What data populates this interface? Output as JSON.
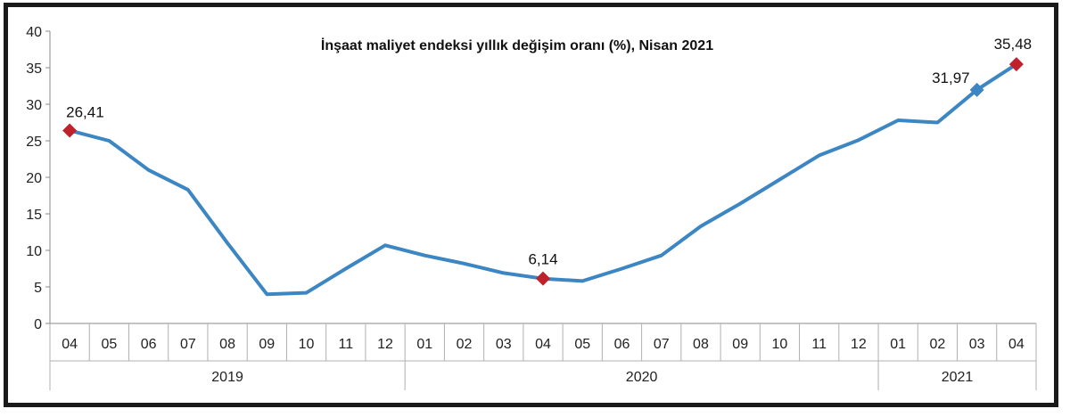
{
  "chart_data": {
    "type": "line",
    "title": "İnşaat maliyet endeksi yıllık değişim oranı (%), Nisan 2021",
    "xlabel": "",
    "ylabel": "",
    "ylim": [
      0,
      40
    ],
    "yticks": [
      "0",
      "5",
      "10",
      "15",
      "20",
      "25",
      "30",
      "35",
      "40"
    ],
    "categories": [
      "04",
      "05",
      "06",
      "07",
      "08",
      "09",
      "10",
      "11",
      "12",
      "01",
      "02",
      "03",
      "04",
      "05",
      "06",
      "07",
      "08",
      "09",
      "10",
      "11",
      "12",
      "01",
      "02",
      "03",
      "04"
    ],
    "year_groups": [
      {
        "label": "2019",
        "start": 0,
        "end": 8
      },
      {
        "label": "2020",
        "start": 9,
        "end": 20
      },
      {
        "label": "2021",
        "start": 21,
        "end": 24
      }
    ],
    "series": [
      {
        "values": [
          26.41,
          25.0,
          21.0,
          18.3,
          11.0,
          4.0,
          4.2,
          7.5,
          10.7,
          9.3,
          8.2,
          6.9,
          6.14,
          5.8,
          7.5,
          9.3,
          13.3,
          16.4,
          19.7,
          23.0,
          25.1,
          27.8,
          27.5,
          31.97,
          35.48
        ],
        "color": "#3b86c3"
      }
    ],
    "annotations": [
      {
        "index": 0,
        "label": "26,41",
        "marker": "diamond",
        "color": "#c0222c"
      },
      {
        "index": 12,
        "label": "6,14",
        "marker": "diamond",
        "color": "#c0222c"
      },
      {
        "index": 23,
        "label": "31,97",
        "marker": "diamond",
        "color": "#3b86c3"
      },
      {
        "index": 24,
        "label": "35,48",
        "marker": "diamond",
        "color": "#c0222c"
      }
    ],
    "grid": false,
    "legend": "none"
  }
}
